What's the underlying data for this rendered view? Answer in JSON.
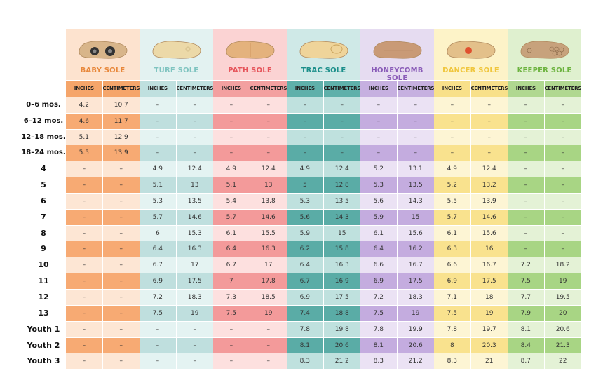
{
  "row_labels": [
    "0–6 mos.",
    "6–12 mos.",
    "12–18 mos.",
    "18–24 mos.",
    "4",
    "5",
    "6",
    "7",
    "8",
    "9",
    "10",
    "11",
    "12",
    "13",
    "Youth 1",
    "Youth 2",
    "Youth 3"
  ],
  "units": [
    "INCHES",
    "CENTIMETERS"
  ],
  "soles": [
    {
      "name": "BABY SOLE",
      "title_color": "#e8873a",
      "head_bg": "#fde3cf",
      "sub_bg": "#f5a56a",
      "light": "#fde6d4",
      "dark": "#f7aa73",
      "shoe": "baby-sole-shoe",
      "values": [
        [
          "4.2",
          "10.7"
        ],
        [
          "4.6",
          "11.7"
        ],
        [
          "5.1",
          "12.9"
        ],
        [
          "5.5",
          "13.9"
        ],
        [
          "–",
          "–"
        ],
        [
          "–",
          "–"
        ],
        [
          "–",
          "–"
        ],
        [
          "–",
          "–"
        ],
        [
          "–",
          "–"
        ],
        [
          "–",
          "–"
        ],
        [
          "–",
          "–"
        ],
        [
          "–",
          "–"
        ],
        [
          "–",
          "–"
        ],
        [
          "–",
          "–"
        ],
        [
          "–",
          "–"
        ],
        [
          "–",
          "–"
        ],
        [
          "–",
          "–"
        ]
      ]
    },
    {
      "name": "TURF SOLE",
      "title_color": "#7fc4c0",
      "head_bg": "#e3f2f1",
      "sub_bg": "#bfe0df",
      "light": "#e4f3f2",
      "dark": "#bfdfde",
      "shoe": "turf-sole-shoe",
      "values": [
        [
          "–",
          "–"
        ],
        [
          "–",
          "–"
        ],
        [
          "–",
          "–"
        ],
        [
          "–",
          "–"
        ],
        [
          "4.9",
          "12.4"
        ],
        [
          "5.1",
          "13"
        ],
        [
          "5.3",
          "13.5"
        ],
        [
          "5.7",
          "14.6"
        ],
        [
          "6",
          "15.3"
        ],
        [
          "6.4",
          "16.3"
        ],
        [
          "6.7",
          "17"
        ],
        [
          "6.9",
          "17.5"
        ],
        [
          "7.2",
          "18.3"
        ],
        [
          "7.5",
          "19"
        ],
        [
          "–",
          "–"
        ],
        [
          "–",
          "–"
        ],
        [
          "–",
          "–"
        ]
      ]
    },
    {
      "name": "PATH SOLE",
      "title_color": "#e6545a",
      "head_bg": "#fbd3d3",
      "sub_bg": "#f3a0a0",
      "light": "#fde0df",
      "dark": "#f39a9a",
      "shoe": "path-sole-shoe",
      "values": [
        [
          "–",
          "–"
        ],
        [
          "–",
          "–"
        ],
        [
          "–",
          "–"
        ],
        [
          "–",
          "–"
        ],
        [
          "4.9",
          "12.4"
        ],
        [
          "5.1",
          "13"
        ],
        [
          "5.4",
          "13.8"
        ],
        [
          "5.7",
          "14.6"
        ],
        [
          "6.1",
          "15.5"
        ],
        [
          "6.4",
          "16.3"
        ],
        [
          "6.7",
          "17"
        ],
        [
          "7",
          "17.8"
        ],
        [
          "7.3",
          "18.5"
        ],
        [
          "7.5",
          "19"
        ],
        [
          "–",
          "–"
        ],
        [
          "–",
          "–"
        ],
        [
          "–",
          "–"
        ]
      ]
    },
    {
      "name": "TRAC SOLE",
      "title_color": "#1b8f8a",
      "head_bg": "#cfe9e7",
      "sub_bg": "#5fb0aa",
      "light": "#bfe1de",
      "dark": "#5aaca6",
      "shoe": "trac-sole-shoe",
      "values": [
        [
          "–",
          "–"
        ],
        [
          "–",
          "–"
        ],
        [
          "–",
          "–"
        ],
        [
          "–",
          "–"
        ],
        [
          "4.9",
          "12.4"
        ],
        [
          "5",
          "12.8"
        ],
        [
          "5.3",
          "13.5"
        ],
        [
          "5.6",
          "14.3"
        ],
        [
          "5.9",
          "15"
        ],
        [
          "6.2",
          "15.8"
        ],
        [
          "6.4",
          "16.3"
        ],
        [
          "6.7",
          "16.9"
        ],
        [
          "6.9",
          "17.5"
        ],
        [
          "7.4",
          "18.8"
        ],
        [
          "7.8",
          "19.8"
        ],
        [
          "8.1",
          "20.6"
        ],
        [
          "8.3",
          "21.2"
        ]
      ]
    },
    {
      "name": "HONEYCOMB SOLE",
      "title_color": "#8a5cb8",
      "head_bg": "#e6dcf1",
      "sub_bg": "#c6b0e0",
      "light": "#ebe2f4",
      "dark": "#c4acdf",
      "shoe": "honeycomb-sole-shoe",
      "values": [
        [
          "–",
          "–"
        ],
        [
          "–",
          "–"
        ],
        [
          "–",
          "–"
        ],
        [
          "–",
          "–"
        ],
        [
          "5.2",
          "13.1"
        ],
        [
          "5.3",
          "13.5"
        ],
        [
          "5.6",
          "14.3"
        ],
        [
          "5.9",
          "15"
        ],
        [
          "6.1",
          "15.6"
        ],
        [
          "6.4",
          "16.2"
        ],
        [
          "6.6",
          "16.7"
        ],
        [
          "6.9",
          "17.5"
        ],
        [
          "7.2",
          "18.3"
        ],
        [
          "7.5",
          "19"
        ],
        [
          "7.8",
          "19.9"
        ],
        [
          "8.1",
          "20.6"
        ],
        [
          "8.3",
          "21.2"
        ]
      ]
    },
    {
      "name": "DANCER SOLE",
      "title_color": "#f0c63c",
      "head_bg": "#fdf3c8",
      "sub_bg": "#f8e08a",
      "light": "#fdf5d4",
      "dark": "#f9e28e",
      "shoe": "dancer-sole-shoe",
      "values": [
        [
          "–",
          "–"
        ],
        [
          "–",
          "–"
        ],
        [
          "–",
          "–"
        ],
        [
          "–",
          "–"
        ],
        [
          "4.9",
          "12.4"
        ],
        [
          "5.2",
          "13.2"
        ],
        [
          "5.5",
          "13.9"
        ],
        [
          "5.7",
          "14.6"
        ],
        [
          "6.1",
          "15.6"
        ],
        [
          "6.3",
          "16"
        ],
        [
          "6.6",
          "16.7"
        ],
        [
          "6.9",
          "17.5"
        ],
        [
          "7.1",
          "18"
        ],
        [
          "7.5",
          "19"
        ],
        [
          "7.8",
          "19.7"
        ],
        [
          "8",
          "20.3"
        ],
        [
          "8.3",
          "21"
        ]
      ]
    },
    {
      "name": "KEEPER SOLE",
      "title_color": "#6cb33f",
      "head_bg": "#dff0cf",
      "sub_bg": "#b0d890",
      "light": "#e4f2d6",
      "dark": "#a8d584",
      "shoe": "keeper-sole-shoe",
      "values": [
        [
          "–",
          "–"
        ],
        [
          "–",
          "–"
        ],
        [
          "–",
          "–"
        ],
        [
          "–",
          "–"
        ],
        [
          "–",
          "–"
        ],
        [
          "–",
          "–"
        ],
        [
          "–",
          "–"
        ],
        [
          "–",
          "–"
        ],
        [
          "–",
          "–"
        ],
        [
          "–",
          "–"
        ],
        [
          "7.2",
          "18.2"
        ],
        [
          "7.5",
          "19"
        ],
        [
          "7.7",
          "19.5"
        ],
        [
          "7.9",
          "20"
        ],
        [
          "8.1",
          "20.6"
        ],
        [
          "8.4",
          "21.3"
        ],
        [
          "8.7",
          "22"
        ]
      ]
    }
  ]
}
